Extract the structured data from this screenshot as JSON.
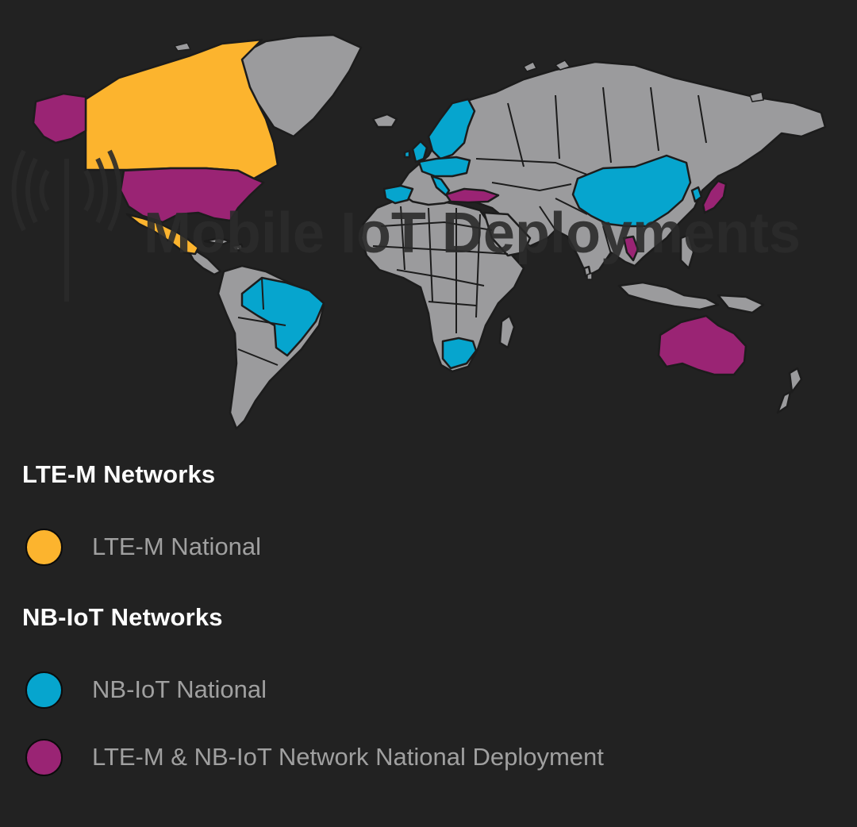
{
  "map": {
    "watermark_text": "Mobile IoT Deployments",
    "land_color": "#9b9b9d",
    "border_color": "#1c1c1c",
    "background_color": "#222222",
    "highlighted_regions": [
      {
        "name": "Alaska",
        "category": "both"
      },
      {
        "name": "Canada",
        "category": "ltem"
      },
      {
        "name": "United States",
        "category": "both"
      },
      {
        "name": "Mexico",
        "category": "ltem"
      },
      {
        "name": "Brazil",
        "category": "nbiot"
      },
      {
        "name": "Spain",
        "category": "nbiot"
      },
      {
        "name": "Portugal",
        "category": "nbiot"
      },
      {
        "name": "Ireland",
        "category": "nbiot"
      },
      {
        "name": "United Kingdom",
        "category": "nbiot"
      },
      {
        "name": "Norway",
        "category": "nbiot"
      },
      {
        "name": "Sweden",
        "category": "nbiot"
      },
      {
        "name": "Finland",
        "category": "nbiot"
      },
      {
        "name": "Denmark",
        "category": "nbiot"
      },
      {
        "name": "Netherlands",
        "category": "nbiot"
      },
      {
        "name": "Belgium",
        "category": "nbiot"
      },
      {
        "name": "Germany",
        "category": "nbiot"
      },
      {
        "name": "Poland",
        "category": "nbiot"
      },
      {
        "name": "Czech Republic",
        "category": "nbiot"
      },
      {
        "name": "Austria",
        "category": "nbiot"
      },
      {
        "name": "Italy",
        "category": "nbiot"
      },
      {
        "name": "Greece",
        "category": "nbiot"
      },
      {
        "name": "Turkey",
        "category": "both"
      },
      {
        "name": "China",
        "category": "nbiot"
      },
      {
        "name": "South Korea",
        "category": "nbiot"
      },
      {
        "name": "Japan",
        "category": "both"
      },
      {
        "name": "Thailand",
        "category": "both"
      },
      {
        "name": "South Africa",
        "category": "nbiot"
      },
      {
        "name": "Australia",
        "category": "both"
      }
    ]
  },
  "legend": {
    "ltem_section_title": "LTE-M Networks",
    "nbiot_section_title": "NB-IoT Networks",
    "items": [
      {
        "key": "ltem",
        "label": "LTE-M National",
        "color": "#fcb42e"
      },
      {
        "key": "nbiot",
        "label": "NB-IoT National",
        "color": "#06a5ce"
      },
      {
        "key": "both",
        "label": "LTE-M & NB-IoT Network National Deployment",
        "color": "#9a2474"
      }
    ]
  }
}
